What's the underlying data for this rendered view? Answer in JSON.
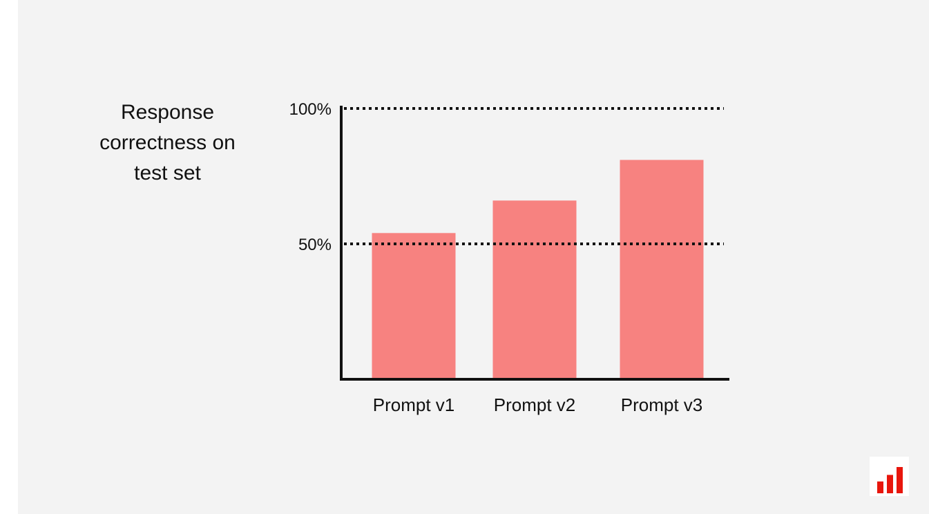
{
  "chart_data": {
    "type": "bar",
    "ylabel": "Response\ncorrectness on\ntest set",
    "categories": [
      "Prompt v1",
      "Prompt v2",
      "Prompt v3"
    ],
    "values": [
      54,
      66,
      81
    ],
    "ylim": [
      0,
      100
    ],
    "ticks": [
      {
        "value": 50,
        "label": "50%"
      },
      {
        "value": 100,
        "label": "100%"
      }
    ],
    "gridlines": "dotted at 50% and 100%",
    "bar_color": "#f78280",
    "axis_color": "#111111"
  },
  "logo": {
    "icon": "bar-chart-logo-icon",
    "color": "#e8160c",
    "bar_heights": [
      0.45,
      0.7,
      1.0
    ]
  }
}
